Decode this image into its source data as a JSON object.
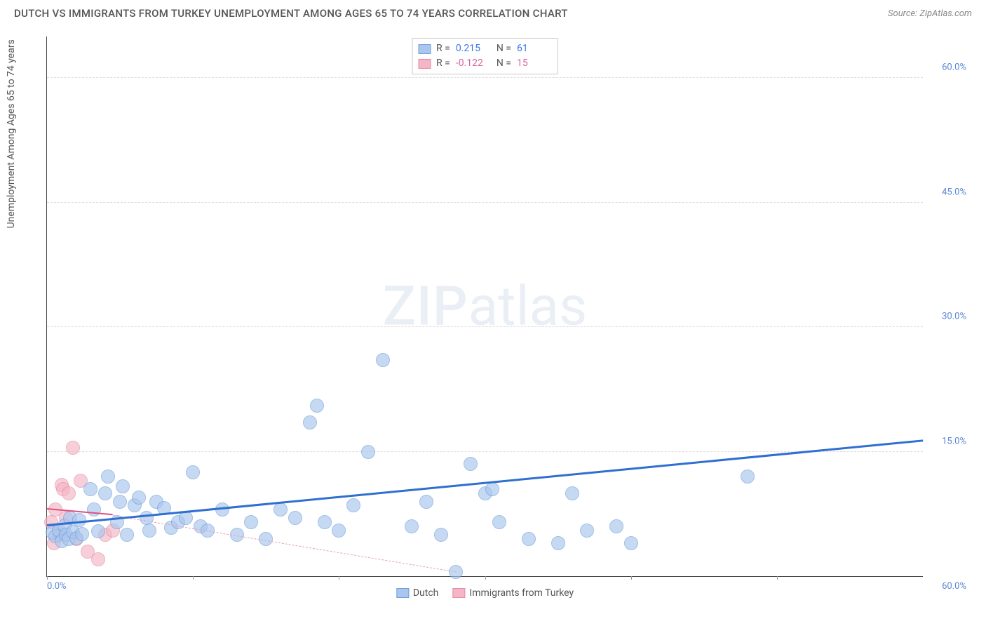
{
  "title": "DUTCH VS IMMIGRANTS FROM TURKEY UNEMPLOYMENT AMONG AGES 65 TO 74 YEARS CORRELATION CHART",
  "source": "Source: ZipAtlas.com",
  "watermark_zip": "ZIP",
  "watermark_atlas": "atlas",
  "chart": {
    "type": "scatter",
    "ylabel": "Unemployment Among Ages 65 to 74 years",
    "xlim": [
      0,
      60
    ],
    "ylim": [
      0,
      65
    ],
    "ytick_positions": [
      15,
      30,
      45,
      60
    ],
    "ytick_labels": [
      "15.0%",
      "30.0%",
      "45.0%",
      "60.0%"
    ],
    "xtick_left": "0.0%",
    "xtick_right": "60.0%",
    "xtick_marks": [
      0,
      10,
      20,
      30,
      40,
      50
    ],
    "grid_color": "#dddddd",
    "axis_color": "#444444",
    "background_color": "#ffffff",
    "ytick_color": "#5b87d6",
    "xtick_color": "#5b87d6",
    "ylabel_fontsize": 14,
    "tick_fontsize": 13,
    "title_fontsize": 15
  },
  "series": [
    {
      "name": "Dutch",
      "legend_label": "Dutch",
      "fill": "#a9c6ee",
      "stroke": "#6f9edb",
      "opacity": 0.65,
      "marker_radius": 10,
      "R_label": "R =",
      "R_value": "0.215",
      "N_label": "N =",
      "N_value": "61",
      "stat_color": "#3b78e7",
      "trend": {
        "x1": 0,
        "y1": 6.0,
        "x2": 60,
        "y2": 16.2,
        "style": "solid",
        "color": "#2f6fd0",
        "width": 3
      },
      "points": [
        {
          "x": 0.4,
          "y": 5.2
        },
        {
          "x": 0.6,
          "y": 4.8
        },
        {
          "x": 0.8,
          "y": 5.5
        },
        {
          "x": 1.0,
          "y": 4.2
        },
        {
          "x": 1.2,
          "y": 6.1
        },
        {
          "x": 1.3,
          "y": 5.0
        },
        {
          "x": 1.5,
          "y": 4.5
        },
        {
          "x": 1.6,
          "y": 7.0
        },
        {
          "x": 1.8,
          "y": 5.3
        },
        {
          "x": 2.0,
          "y": 4.6
        },
        {
          "x": 2.2,
          "y": 6.8
        },
        {
          "x": 2.4,
          "y": 5.1
        },
        {
          "x": 3.0,
          "y": 10.5
        },
        {
          "x": 3.2,
          "y": 8.0
        },
        {
          "x": 3.5,
          "y": 5.4
        },
        {
          "x": 4.0,
          "y": 10.0
        },
        {
          "x": 4.2,
          "y": 12.0
        },
        {
          "x": 4.8,
          "y": 6.5
        },
        {
          "x": 5.0,
          "y": 9.0
        },
        {
          "x": 5.2,
          "y": 10.8
        },
        {
          "x": 5.5,
          "y": 5.0
        },
        {
          "x": 6.0,
          "y": 8.5
        },
        {
          "x": 6.3,
          "y": 9.5
        },
        {
          "x": 6.8,
          "y": 7.0
        },
        {
          "x": 7.0,
          "y": 5.5
        },
        {
          "x": 7.5,
          "y": 9.0
        },
        {
          "x": 8.0,
          "y": 8.2
        },
        {
          "x": 8.5,
          "y": 5.8
        },
        {
          "x": 9.0,
          "y": 6.5
        },
        {
          "x": 9.5,
          "y": 7.0
        },
        {
          "x": 10.0,
          "y": 12.5
        },
        {
          "x": 10.5,
          "y": 6.0
        },
        {
          "x": 11.0,
          "y": 5.5
        },
        {
          "x": 12.0,
          "y": 8.0
        },
        {
          "x": 13.0,
          "y": 5.0
        },
        {
          "x": 14.0,
          "y": 6.5
        },
        {
          "x": 15.0,
          "y": 4.5
        },
        {
          "x": 16.0,
          "y": 8.0
        },
        {
          "x": 17.0,
          "y": 7.0
        },
        {
          "x": 18.0,
          "y": 18.5
        },
        {
          "x": 18.5,
          "y": 20.5
        },
        {
          "x": 19.0,
          "y": 6.5
        },
        {
          "x": 20.0,
          "y": 5.5
        },
        {
          "x": 21.0,
          "y": 8.5
        },
        {
          "x": 22.0,
          "y": 15.0
        },
        {
          "x": 23.0,
          "y": 26.0
        },
        {
          "x": 25.0,
          "y": 6.0
        },
        {
          "x": 26.0,
          "y": 9.0
        },
        {
          "x": 27.0,
          "y": 5.0
        },
        {
          "x": 28.0,
          "y": 0.5
        },
        {
          "x": 29.0,
          "y": 13.5
        },
        {
          "x": 30.0,
          "y": 10.0
        },
        {
          "x": 30.5,
          "y": 10.5
        },
        {
          "x": 31.0,
          "y": 6.5
        },
        {
          "x": 33.0,
          "y": 4.5
        },
        {
          "x": 35.0,
          "y": 4.0
        },
        {
          "x": 36.0,
          "y": 10.0
        },
        {
          "x": 37.0,
          "y": 5.5
        },
        {
          "x": 39.0,
          "y": 6.0
        },
        {
          "x": 40.0,
          "y": 4.0
        },
        {
          "x": 48.0,
          "y": 12.0
        }
      ]
    },
    {
      "name": "Immigrants from Turkey",
      "legend_label": "Immigrants from Turkey",
      "fill": "#f4b6c6",
      "stroke": "#e78aa5",
      "opacity": 0.65,
      "marker_radius": 10,
      "R_label": "R =",
      "R_value": "-0.122",
      "N_label": "N =",
      "N_value": "15",
      "stat_color": "#d865a0",
      "trend": {
        "x1": 0,
        "y1": 8.0,
        "x2": 4.5,
        "y2": 7.3,
        "style": "solid",
        "color": "#e05080",
        "width": 2
      },
      "trend_dash": {
        "x1": 4.5,
        "y1": 7.3,
        "x2": 28,
        "y2": 0.5,
        "style": "dashed",
        "color": "#e8a0b8",
        "width": 1.5
      },
      "points": [
        {
          "x": 0.3,
          "y": 6.5
        },
        {
          "x": 0.5,
          "y": 4.0
        },
        {
          "x": 0.6,
          "y": 8.0
        },
        {
          "x": 0.8,
          "y": 5.0
        },
        {
          "x": 1.0,
          "y": 11.0
        },
        {
          "x": 1.1,
          "y": 10.5
        },
        {
          "x": 1.3,
          "y": 7.0
        },
        {
          "x": 1.5,
          "y": 10.0
        },
        {
          "x": 1.8,
          "y": 15.5
        },
        {
          "x": 2.0,
          "y": 4.5
        },
        {
          "x": 2.3,
          "y": 11.5
        },
        {
          "x": 2.8,
          "y": 3.0
        },
        {
          "x": 3.5,
          "y": 2.0
        },
        {
          "x": 4.0,
          "y": 5.0
        },
        {
          "x": 4.5,
          "y": 5.5
        }
      ]
    }
  ]
}
